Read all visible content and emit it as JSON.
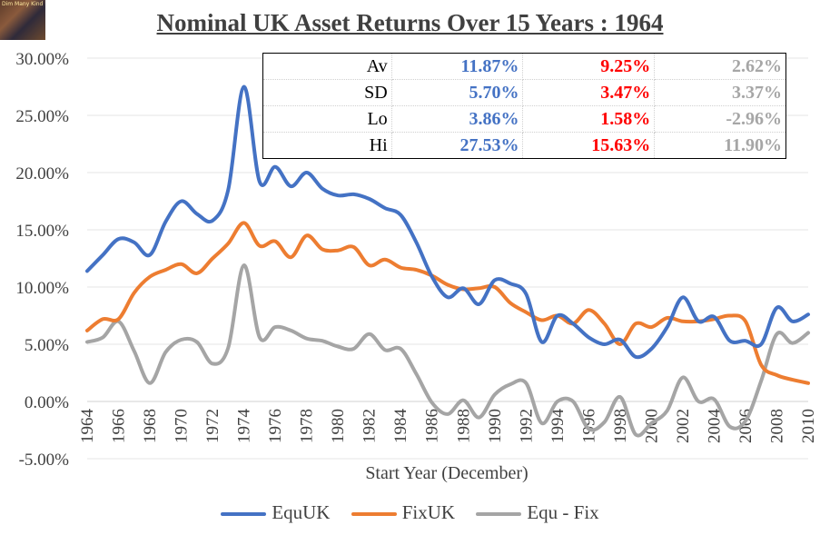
{
  "chart_data": {
    "type": "line",
    "title": "Nominal UK Asset Returns Over 15 Years : 1964",
    "xlabel": "Start Year (December)",
    "ylabel": "",
    "x_ticks": [
      "1964",
      "1966",
      "1968",
      "1970",
      "1972",
      "1974",
      "1976",
      "1978",
      "1980",
      "1982",
      "1984",
      "1986",
      "1988",
      "1990",
      "1992",
      "1994",
      "1996",
      "1998",
      "2000",
      "2002",
      "2004",
      "2006",
      "2008",
      "2010"
    ],
    "y_ticks": [
      "30.00%",
      "25.00%",
      "20.00%",
      "15.00%",
      "10.00%",
      "5.00%",
      "0.00%",
      "-5.00%"
    ],
    "xlim": [
      1964,
      2010
    ],
    "ylim": [
      -5,
      30
    ],
    "colors": {
      "EquUK": "#4472c4",
      "FixUK": "#ed7d31",
      "Equ - Fix": "#a5a5a5"
    },
    "x": [
      1964,
      1965,
      1966,
      1967,
      1968,
      1969,
      1970,
      1971,
      1972,
      1973,
      1974,
      1975,
      1976,
      1977,
      1978,
      1979,
      1980,
      1981,
      1982,
      1983,
      1984,
      1985,
      1986,
      1987,
      1988,
      1989,
      1990,
      1991,
      1992,
      1993,
      1994,
      1995,
      1996,
      1997,
      1998,
      1999,
      2000,
      2001,
      2002,
      2003,
      2004,
      2005,
      2006,
      2007,
      2008,
      2009,
      2010
    ],
    "series": [
      {
        "name": "EquUK",
        "values": [
          11.4,
          12.8,
          14.2,
          13.9,
          12.8,
          15.7,
          17.5,
          16.4,
          15.8,
          18.5,
          27.5,
          19.2,
          20.5,
          18.8,
          20.0,
          18.6,
          18.0,
          18.1,
          17.7,
          16.9,
          16.3,
          13.9,
          10.9,
          9.1,
          9.9,
          8.5,
          10.6,
          10.3,
          9.4,
          5.2,
          7.5,
          6.8,
          5.6,
          5.0,
          5.4,
          3.9,
          4.6,
          6.5,
          9.1,
          7.0,
          7.4,
          5.3,
          5.3,
          5.0,
          8.2,
          7.0,
          7.6
        ]
      },
      {
        "name": "FixUK",
        "values": [
          6.2,
          7.2,
          7.2,
          9.5,
          10.9,
          11.5,
          12.0,
          11.2,
          12.5,
          13.8,
          15.6,
          13.6,
          14.0,
          12.6,
          14.5,
          13.3,
          13.2,
          13.5,
          11.9,
          12.4,
          11.7,
          11.5,
          11.0,
          10.2,
          9.8,
          9.9,
          10.0,
          8.6,
          7.8,
          7.1,
          7.5,
          6.8,
          8.0,
          6.8,
          5.0,
          6.8,
          6.5,
          7.3,
          7.0,
          7.0,
          7.2,
          7.5,
          7.0,
          3.2,
          2.3,
          1.9,
          1.6
        ]
      },
      {
        "name": "Equ - Fix",
        "values": [
          5.2,
          5.6,
          7.0,
          4.4,
          1.6,
          4.3,
          5.4,
          5.2,
          3.3,
          4.7,
          11.9,
          5.6,
          6.5,
          6.2,
          5.5,
          5.3,
          4.8,
          4.6,
          5.9,
          4.5,
          4.6,
          2.4,
          -0.1,
          -1.1,
          0.1,
          -1.4,
          0.6,
          1.5,
          1.6,
          -1.9,
          0.0,
          0.0,
          -2.4,
          -1.8,
          0.4,
          -2.9,
          -1.9,
          -0.8,
          2.1,
          0.0,
          0.2,
          -2.2,
          -1.7,
          1.8,
          5.9,
          5.1,
          6.0
        ]
      }
    ],
    "stats_table": {
      "rows": [
        {
          "label": "Av",
          "equ": "11.87%",
          "fix": "9.25%",
          "diff": "2.62%"
        },
        {
          "label": "SD",
          "equ": "5.70%",
          "fix": "3.47%",
          "diff": "3.37%"
        },
        {
          "label": "Lo",
          "equ": "3.86%",
          "fix": "1.58%",
          "diff": "-2.96%"
        },
        {
          "label": "Hi",
          "equ": "27.53%",
          "fix": "15.63%",
          "diff": "11.90%"
        }
      ]
    },
    "legend": [
      "EquUK",
      "FixUK",
      "Equ - Fix"
    ]
  },
  "logo": {
    "text": "Dim Many Kind"
  }
}
